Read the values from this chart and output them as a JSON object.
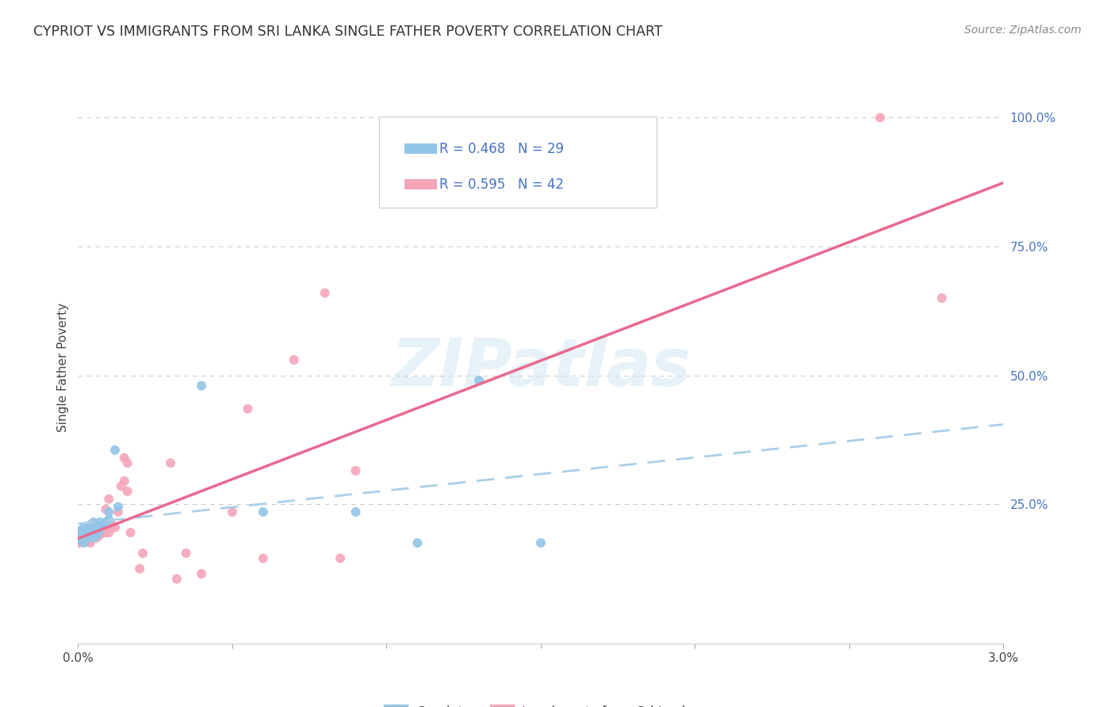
{
  "title": "CYPRIOT VS IMMIGRANTS FROM SRI LANKA SINGLE FATHER POVERTY CORRELATION CHART",
  "source": "Source: ZipAtlas.com",
  "ylabel": "Single Father Poverty",
  "xlim": [
    0.0,
    0.03
  ],
  "ylim": [
    -0.02,
    1.05
  ],
  "color_cypriot": "#92C5E8",
  "color_srilanka": "#F4A7B9",
  "color_line_blue": "#7AB3D9",
  "color_line_pink": "#E8698D",
  "color_text_blue": "#4472C4",
  "watermark_text": "ZIPatlas",
  "cypriot_x": [
    5e-05,
    0.0001,
    0.0001,
    0.0002,
    0.0002,
    0.0002,
    0.0003,
    0.0003,
    0.0003,
    0.0004,
    0.0004,
    0.0005,
    0.0005,
    0.0006,
    0.0006,
    0.0007,
    0.0007,
    0.0008,
    0.0009,
    0.001,
    0.001,
    0.0012,
    0.0013,
    0.004,
    0.006,
    0.009,
    0.011,
    0.013,
    0.015
  ],
  "cypriot_y": [
    0.19,
    0.18,
    0.2,
    0.175,
    0.19,
    0.205,
    0.185,
    0.195,
    0.2,
    0.195,
    0.21,
    0.185,
    0.215,
    0.19,
    0.205,
    0.2,
    0.215,
    0.21,
    0.215,
    0.235,
    0.22,
    0.355,
    0.245,
    0.48,
    0.235,
    0.235,
    0.175,
    0.49,
    0.175
  ],
  "srilanka_x": [
    5e-05,
    0.0001,
    0.0002,
    0.0003,
    0.0004,
    0.0004,
    0.0005,
    0.0005,
    0.0005,
    0.0006,
    0.0006,
    0.0007,
    0.0007,
    0.0008,
    0.0009,
    0.0009,
    0.001,
    0.001,
    0.0011,
    0.0012,
    0.0013,
    0.0014,
    0.0015,
    0.0015,
    0.0016,
    0.0016,
    0.0017,
    0.002,
    0.0021,
    0.003,
    0.0032,
    0.0035,
    0.004,
    0.005,
    0.0055,
    0.006,
    0.007,
    0.008,
    0.0085,
    0.009,
    0.026,
    0.028
  ],
  "srilanka_y": [
    0.175,
    0.185,
    0.195,
    0.18,
    0.175,
    0.19,
    0.185,
    0.19,
    0.21,
    0.185,
    0.195,
    0.19,
    0.205,
    0.195,
    0.195,
    0.24,
    0.195,
    0.26,
    0.21,
    0.205,
    0.235,
    0.285,
    0.295,
    0.34,
    0.33,
    0.275,
    0.195,
    0.125,
    0.155,
    0.33,
    0.105,
    0.155,
    0.115,
    0.235,
    0.435,
    0.145,
    0.53,
    0.66,
    0.145,
    0.315,
    1.0,
    0.65
  ],
  "background_color": "#FFFFFF",
  "grid_color": "#CCCCCC"
}
